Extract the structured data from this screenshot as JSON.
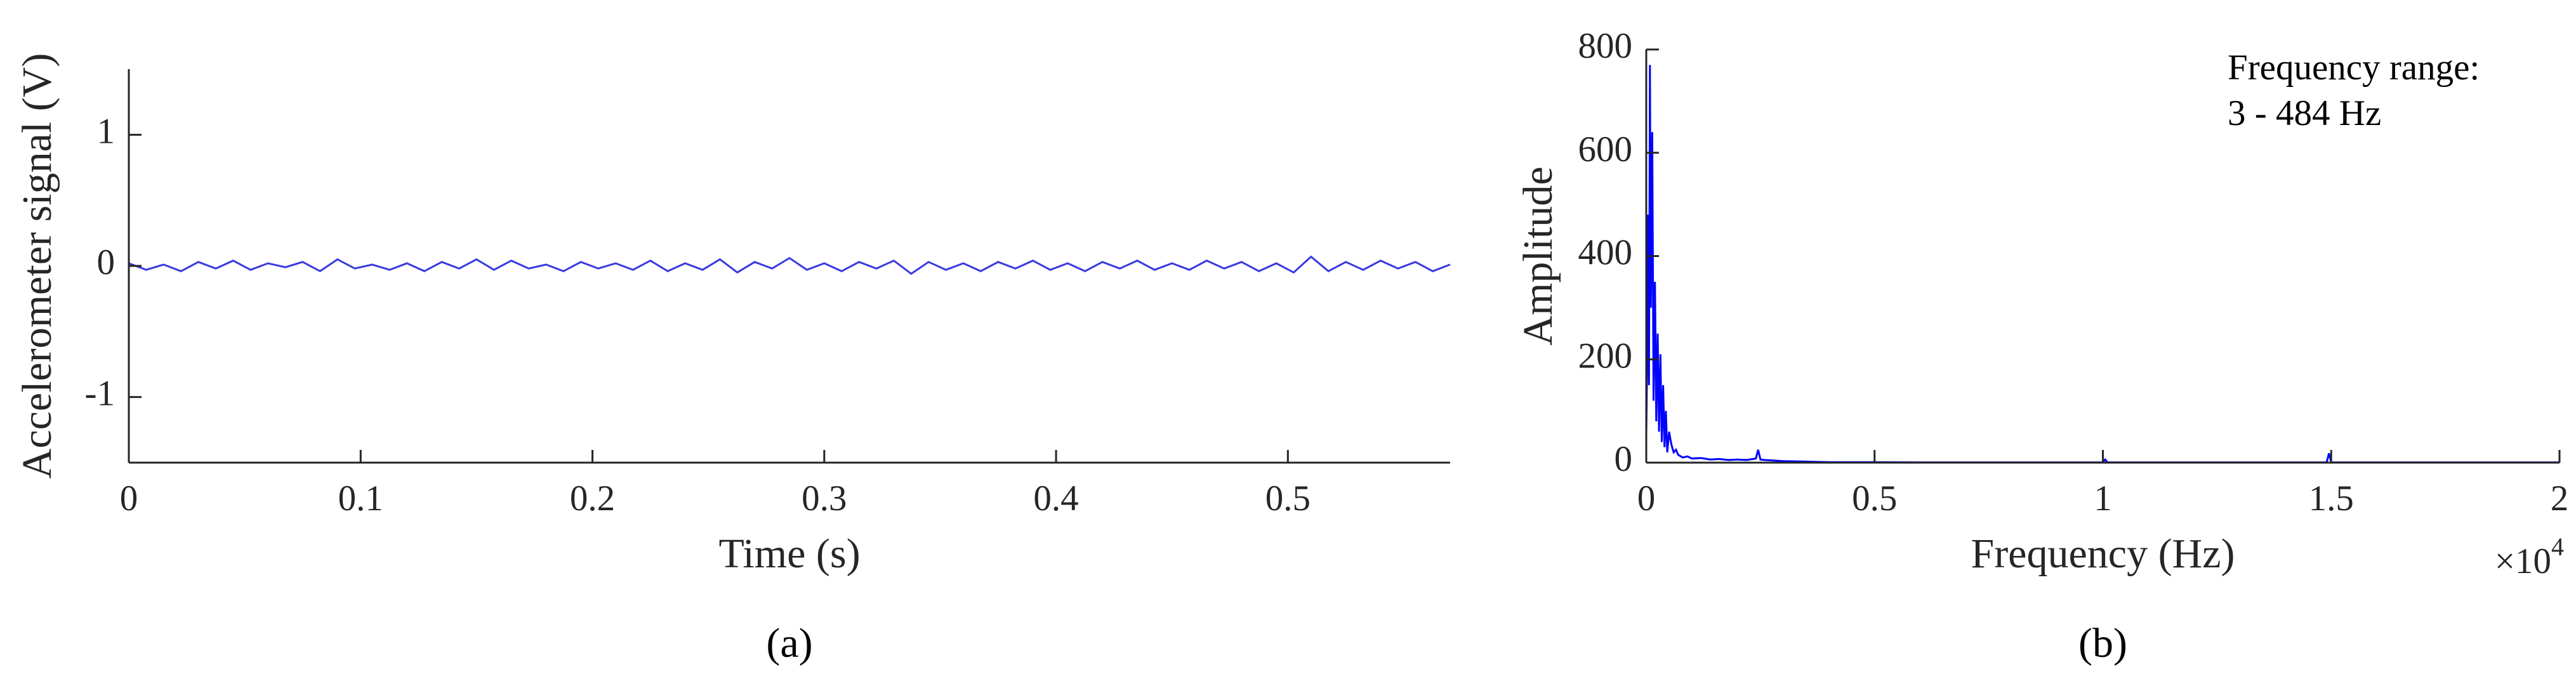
{
  "chart_data": [
    {
      "type": "line",
      "label": "(a)",
      "xlabel": "Time (s)",
      "ylabel": "Accelerometer signal (V)",
      "color": "#3a3ae0",
      "x": [
        0,
        0.0075,
        0.015,
        0.0225,
        0.03,
        0.0375,
        0.045,
        0.0525,
        0.06,
        0.0675,
        0.075,
        0.0825,
        0.09,
        0.0975,
        0.105,
        0.1125,
        0.12,
        0.1275,
        0.135,
        0.1425,
        0.15,
        0.1575,
        0.165,
        0.1725,
        0.18,
        0.1875,
        0.195,
        0.2025,
        0.21,
        0.2175,
        0.225,
        0.2325,
        0.24,
        0.2475,
        0.255,
        0.2625,
        0.27,
        0.2775,
        0.285,
        0.2925,
        0.3,
        0.3075,
        0.315,
        0.3225,
        0.33,
        0.3375,
        0.345,
        0.3525,
        0.36,
        0.3675,
        0.375,
        0.3825,
        0.39,
        0.3975,
        0.405,
        0.4125,
        0.42,
        0.4275,
        0.435,
        0.4425,
        0.45,
        0.4575,
        0.465,
        0.4725,
        0.48,
        0.4875,
        0.495,
        0.5025,
        0.51,
        0.5175,
        0.525,
        0.5325,
        0.54,
        0.5475,
        0.555,
        0.5625,
        0.57
      ],
      "values": [
        0.02,
        -0.03,
        0.01,
        -0.04,
        0.03,
        -0.02,
        0.04,
        -0.03,
        0.02,
        -0.01,
        0.03,
        -0.04,
        0.05,
        -0.02,
        0.01,
        -0.03,
        0.02,
        -0.04,
        0.03,
        -0.02,
        0.05,
        -0.03,
        0.04,
        -0.02,
        0.01,
        -0.04,
        0.03,
        -0.02,
        0.02,
        -0.03,
        0.04,
        -0.04,
        0.02,
        -0.03,
        0.05,
        -0.05,
        0.03,
        -0.02,
        0.06,
        -0.03,
        0.02,
        -0.04,
        0.03,
        -0.02,
        0.04,
        -0.06,
        0.03,
        -0.03,
        0.02,
        -0.04,
        0.03,
        -0.02,
        0.04,
        -0.03,
        0.02,
        -0.04,
        0.03,
        -0.02,
        0.04,
        -0.03,
        0.02,
        -0.03,
        0.04,
        -0.02,
        0.03,
        -0.04,
        0.02,
        -0.05,
        0.07,
        -0.04,
        0.03,
        -0.03,
        0.04,
        -0.02,
        0.03,
        -0.04,
        0.01
      ],
      "xlim": [
        0,
        0.57
      ],
      "xticks": [
        0,
        0.1,
        0.2,
        0.3,
        0.4,
        0.5
      ],
      "ylim": [
        -1.5,
        1.5
      ],
      "yticks": [
        -1,
        0,
        1
      ]
    },
    {
      "type": "line",
      "label": "(b)",
      "xlabel": "Frequency (Hz)",
      "ylabel": "Amplitude",
      "color": "#0000ff",
      "annotation": [
        "Frequency range:",
        "3 - 484 Hz"
      ],
      "x_multiplier": "×10",
      "x_multiplier_exp": "4",
      "x": [
        0,
        20,
        40,
        60,
        80,
        100,
        130,
        160,
        190,
        220,
        250,
        280,
        310,
        340,
        370,
        400,
        430,
        460,
        500,
        550,
        600,
        650,
        700,
        800,
        900,
        1000,
        1200,
        1400,
        1600,
        1800,
        2000,
        2200,
        2400,
        2450,
        2500,
        2600,
        2800,
        3000,
        3500,
        4000,
        5000,
        6000,
        8000,
        10000,
        10050,
        10100,
        12000,
        14000,
        14900,
        14950,
        15000,
        15100,
        17000,
        20000
      ],
      "values": [
        50,
        200,
        480,
        150,
        770,
        300,
        640,
        120,
        350,
        80,
        250,
        60,
        210,
        40,
        150,
        30,
        100,
        20,
        60,
        35,
        20,
        25,
        15,
        10,
        12,
        8,
        9,
        6,
        7,
        5,
        6,
        5,
        8,
        25,
        6,
        5,
        4,
        3,
        2,
        1,
        1,
        0.5,
        0.5,
        0.5,
        6,
        0.5,
        0.5,
        0.5,
        0.5,
        18,
        0.5,
        0.5,
        0.5,
        0.5
      ],
      "xlim": [
        0,
        20000
      ],
      "xticks": [
        0,
        {
          "value": 5000,
          "label": "0.5"
        },
        {
          "value": 10000,
          "label": "1"
        },
        {
          "value": 15000,
          "label": "1.5"
        },
        {
          "value": 20000,
          "label": "2"
        }
      ],
      "ylim": [
        0,
        800
      ],
      "yticks": [
        0,
        200,
        400,
        600,
        800
      ]
    }
  ]
}
